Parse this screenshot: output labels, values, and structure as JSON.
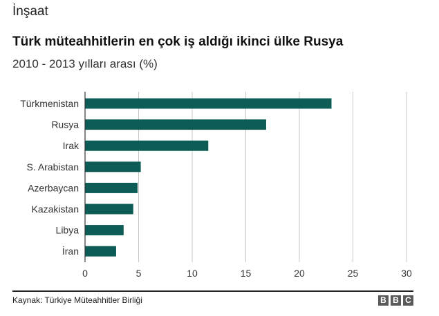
{
  "header": {
    "section": "İnşaat",
    "title": "Türk müteahhitlerin en çok iş aldığı ikinci ülke Rusya",
    "subtitle": "2010 - 2013 yılları arası (%)"
  },
  "footer": {
    "source": "Kaynak: Türkiye Müteahhitler Birliği",
    "logo_letters": [
      "B",
      "B",
      "C"
    ]
  },
  "colors": {
    "bar": "#0d5c55",
    "grid": "#c8c8c8",
    "axis": "#333333"
  },
  "chart_data": {
    "type": "bar",
    "orientation": "horizontal",
    "categories": [
      "Türkmenistan",
      "Rusya",
      "Irak",
      "S. Arabistan",
      "Azerbaycan",
      "Kazakistan",
      "Libya",
      "İran"
    ],
    "values": [
      23.0,
      16.9,
      11.5,
      5.2,
      4.9,
      4.5,
      3.6,
      2.9
    ],
    "xlim": [
      0,
      30
    ],
    "xticks": [
      0,
      5,
      10,
      15,
      20,
      25,
      30
    ],
    "grid": true,
    "legend": "none"
  }
}
